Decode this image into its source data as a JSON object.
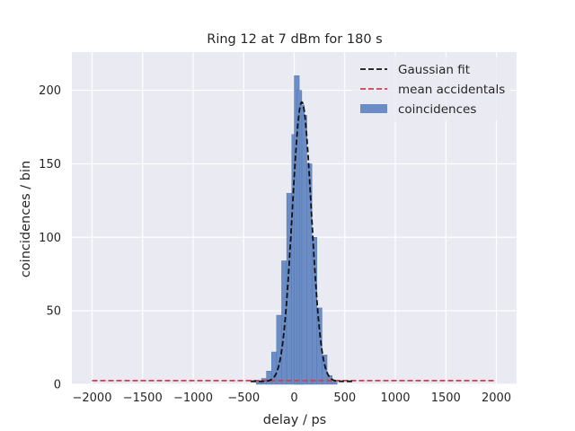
{
  "chart_data": {
    "type": "bar",
    "title": "Ring 12 at 7 dBm for 180 s",
    "xlabel": "delay / ps",
    "ylabel": "coincidences / bin",
    "xlim": [
      -2200,
      2200
    ],
    "ylim": [
      0,
      226
    ],
    "xticks": [
      -2000,
      -1500,
      -1000,
      -500,
      0,
      500,
      1000,
      1500,
      2000
    ],
    "yticks": [
      0,
      50,
      100,
      150,
      200
    ],
    "grid": true,
    "legend": {
      "placement": "top-right",
      "entries": [
        {
          "label": "Gaussian fit",
          "style": "dashed",
          "color": "#111111"
        },
        {
          "label": "mean accidentals",
          "style": "dashed",
          "color": "#d0404e"
        },
        {
          "label": "coincidences",
          "style": "patch",
          "color": "#6b8cc4"
        }
      ]
    },
    "series": [
      {
        "name": "coincidences",
        "x": [
          -350,
          -300,
          -250,
          -200,
          -150,
          -100,
          -50,
          0,
          25,
          50,
          75,
          100,
          150,
          200,
          250,
          300,
          350,
          400
        ],
        "values": [
          2,
          4,
          9,
          22,
          47,
          84,
          130,
          170,
          210,
          200,
          190,
          183,
          150,
          100,
          52,
          20,
          6,
          2
        ]
      },
      {
        "name": "Gaussian fit",
        "mu": 75,
        "sigma": 95,
        "amplitude": 192,
        "baseline": 2
      },
      {
        "name": "mean accidentals",
        "value": 2.5,
        "x_range": [
          -2000,
          2000
        ]
      }
    ],
    "colors": {
      "background": "#eaeaf2",
      "grid": "#ffffff",
      "bars": "#6b8cc4",
      "bar_edge": "#4c72b0"
    }
  }
}
